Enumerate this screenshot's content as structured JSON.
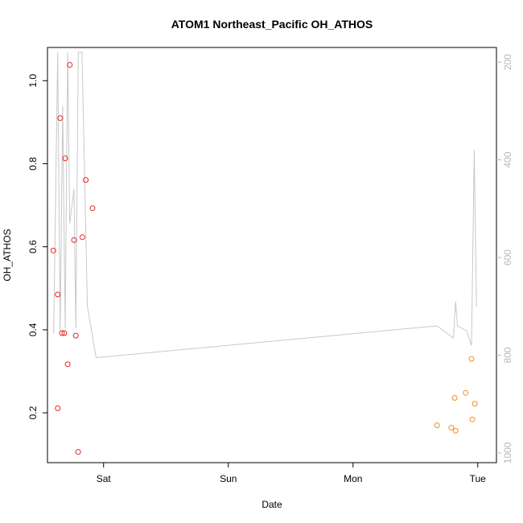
{
  "chart_data": {
    "type": "scatter",
    "title": "ATOM1 Northeast_Pacific OH_ATHOS",
    "xlabel": "Date",
    "ylabel": "OH_ATHOS",
    "x_ticks": [
      {
        "label": "Sat",
        "day": 1.0
      },
      {
        "label": "Sun",
        "day": 2.0
      },
      {
        "label": "Mon",
        "day": 3.0
      },
      {
        "label": "Tue",
        "day": 4.0
      }
    ],
    "xlim": [
      0.55,
      4.15
    ],
    "ylim": [
      0.08,
      1.08
    ],
    "y_ticks": [
      0.2,
      0.4,
      0.6,
      0.8,
      1.0
    ],
    "y2lim": [
      1020,
      170
    ],
    "y2_ticks": [
      200,
      400,
      600,
      800,
      1000
    ],
    "series": [
      {
        "color": "#e8231f",
        "marker": "open-circle",
        "points": [
          {
            "x": 0.597,
            "y": 0.591
          },
          {
            "x": 0.632,
            "y": 0.485
          },
          {
            "x": 0.632,
            "y": 0.211
          },
          {
            "x": 0.652,
            "y": 0.91
          },
          {
            "x": 0.666,
            "y": 0.392
          },
          {
            "x": 0.685,
            "y": 0.392
          },
          {
            "x": 0.692,
            "y": 0.813
          },
          {
            "x": 0.712,
            "y": 0.317
          },
          {
            "x": 0.729,
            "y": 1.038
          },
          {
            "x": 0.763,
            "y": 0.616
          },
          {
            "x": 0.777,
            "y": 0.386
          },
          {
            "x": 0.796,
            "y": 0.106
          },
          {
            "x": 0.83,
            "y": 0.623
          },
          {
            "x": 0.857,
            "y": 0.761
          },
          {
            "x": 0.911,
            "y": 0.693
          }
        ]
      },
      {
        "color": "#f08c1e",
        "marker": "open-circle",
        "points": [
          {
            "x": 3.674,
            "y": 0.17
          },
          {
            "x": 3.788,
            "y": 0.164
          },
          {
            "x": 3.815,
            "y": 0.236
          },
          {
            "x": 3.822,
            "y": 0.157
          },
          {
            "x": 3.903,
            "y": 0.248
          },
          {
            "x": 3.95,
            "y": 0.33
          },
          {
            "x": 3.957,
            "y": 0.184
          },
          {
            "x": 3.977,
            "y": 0.222
          }
        ]
      },
      {
        "color": "#c8c8c8",
        "marker": "line",
        "axis": "right",
        "points": [
          {
            "x": 0.6,
            "y": 755
          },
          {
            "x": 0.632,
            "y": 180
          },
          {
            "x": 0.652,
            "y": 750
          },
          {
            "x": 0.672,
            "y": 290
          },
          {
            "x": 0.692,
            "y": 745
          },
          {
            "x": 0.712,
            "y": 180
          },
          {
            "x": 0.729,
            "y": 530
          },
          {
            "x": 0.763,
            "y": 460
          },
          {
            "x": 0.777,
            "y": 745
          },
          {
            "x": 0.797,
            "y": 180
          },
          {
            "x": 0.827,
            "y": 180
          },
          {
            "x": 0.87,
            "y": 700
          },
          {
            "x": 0.94,
            "y": 805
          },
          {
            "x": 3.673,
            "y": 740
          },
          {
            "x": 3.805,
            "y": 765
          },
          {
            "x": 3.822,
            "y": 690
          },
          {
            "x": 3.837,
            "y": 740
          },
          {
            "x": 3.91,
            "y": 750
          },
          {
            "x": 3.95,
            "y": 780
          },
          {
            "x": 3.972,
            "y": 380
          },
          {
            "x": 3.99,
            "y": 700
          }
        ]
      }
    ]
  }
}
